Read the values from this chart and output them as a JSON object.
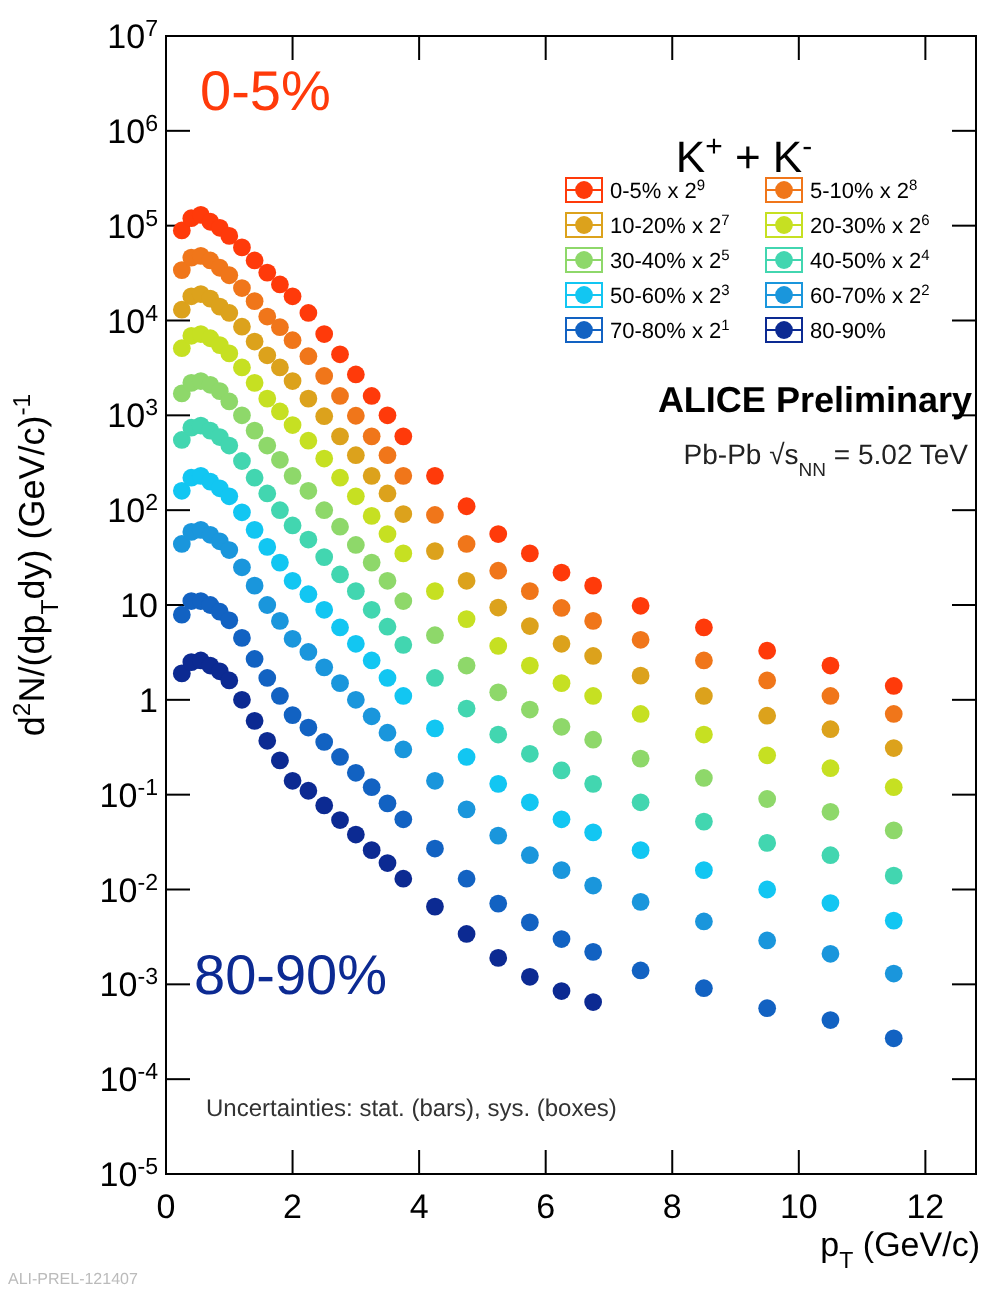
{
  "chart_data": {
    "type": "scatter",
    "xlabel": "p$_{T}$ (GeV/c)",
    "ylabel": "d$^{2}$N/(dp$_{T}$dy) (GeV/c)$^{-1}$",
    "log": "y",
    "xlim": [
      0,
      12.8
    ],
    "xticks": [
      0,
      2,
      4,
      6,
      8,
      10,
      12
    ],
    "ylim": [
      1e-05,
      10000000.0
    ],
    "yticks": [
      {
        "value": 1e-05,
        "label": "10$^{-5}$"
      },
      {
        "value": 0.0001,
        "label": "10$^{-4}$"
      },
      {
        "value": 0.001,
        "label": "10$^{-3}$"
      },
      {
        "value": 0.01,
        "label": "10$^{-2}$"
      },
      {
        "value": 0.1,
        "label": "10$^{-1}$"
      },
      1,
      10,
      {
        "value": 100,
        "label": "10$^{2}$"
      },
      {
        "value": 1000,
        "label": "10$^{3}$"
      },
      {
        "value": 10000,
        "label": "10$^{4}$"
      },
      {
        "value": 100000,
        "label": "10$^{5}$"
      },
      {
        "value": 1000000,
        "label": "10$^{6}$"
      },
      {
        "value": 10000000,
        "label": "10$^{7}$"
      }
    ],
    "marker": "circle",
    "legend": "top right",
    "annotations": [
      "0-5%",
      "80-90%",
      "K$^{+}$ + K$^{-}$",
      "ALICE Preliminary",
      "Pb-Pb √s$_{NN}$ = 5.02 TeV",
      "Uncertainties: stat. (bars), sys. (boxes)",
      "ALI-PREL-121407"
    ],
    "x": [
      0.25,
      0.4,
      0.55,
      0.7,
      0.85,
      1.0,
      1.2,
      1.4,
      1.6,
      1.8,
      2.0,
      2.25,
      2.5,
      2.75,
      3.0,
      3.25,
      3.5,
      3.75,
      4.25,
      4.75,
      5.25,
      5.75,
      6.25,
      6.75,
      7.5,
      8.5,
      9.5,
      10.5,
      11.5
    ],
    "series": [
      {
        "name": "0-5% x 2$^{9}$",
        "color": "#ff3a0a",
        "values": [
          89000.0,
          120000.0,
          130000.0,
          110000.0,
          95000.0,
          78000.0,
          59000.0,
          43000.0,
          32000.0,
          24000.0,
          18000.0,
          12000.0,
          7200.0,
          4400.0,
          2700.0,
          1600.0,
          1000.0,
          600,
          230,
          110,
          56,
          35,
          22,
          16,
          9.8,
          5.8,
          3.3,
          2.3,
          1.4
        ]
      },
      {
        "name": "5-10% x 2$^{8}$",
        "color": "#f0761a",
        "values": [
          34000.0,
          46000.0,
          48000.0,
          43000.0,
          36000.0,
          30000.0,
          22000.0,
          16000.0,
          11000.0,
          8500.0,
          6200.0,
          4200.0,
          2600.0,
          1600.0,
          990,
          600,
          380,
          230,
          89,
          44,
          23,
          14,
          9.3,
          6.8,
          4.3,
          2.6,
          1.6,
          1.1,
          0.71
        ]
      },
      {
        "name": "10-20% x 2$^{7}$",
        "color": "#dca21c",
        "values": [
          13000.0,
          18000.0,
          19000.0,
          17000.0,
          14000.0,
          12000.0,
          8600.0,
          6000.0,
          4300.0,
          3200.0,
          2300.0,
          1500.0,
          980,
          600,
          380,
          230,
          150,
          91,
          37,
          18,
          9.4,
          6.0,
          3.9,
          2.9,
          1.8,
          1.1,
          0.68,
          0.49,
          0.31
        ]
      },
      {
        "name": "20-30% x 2$^{6}$",
        "color": "#c6e022",
        "values": [
          5100.0,
          6900.0,
          7200.0,
          6500.0,
          5500.0,
          4500.0,
          3200.0,
          2200.0,
          1500.0,
          1100.0,
          790,
          540,
          350,
          220,
          140,
          87,
          56,
          35,
          14,
          7.1,
          3.7,
          2.3,
          1.5,
          1.1,
          0.71,
          0.43,
          0.26,
          0.19,
          0.12
        ]
      },
      {
        "name": "30-40% x 2$^{5}$",
        "color": "#8ed86a",
        "values": [
          1700.0,
          2200.0,
          2300.0,
          2100.0,
          1800.0,
          1400.0,
          1000.0,
          690,
          480,
          340,
          230,
          160,
          100,
          67,
          43,
          28,
          18,
          11,
          4.8,
          2.3,
          1.2,
          0.79,
          0.52,
          0.38,
          0.24,
          0.15,
          0.09,
          0.066,
          0.042
        ]
      },
      {
        "name": "40-50% x 2$^{4}$",
        "color": "#42d6b0",
        "values": [
          550,
          740,
          780,
          690,
          590,
          480,
          330,
          220,
          150,
          100,
          69,
          49,
          32,
          21,
          14,
          8.9,
          5.9,
          3.8,
          1.7,
          0.81,
          0.43,
          0.27,
          0.18,
          0.13,
          0.083,
          0.052,
          0.031,
          0.023,
          0.014
        ]
      },
      {
        "name": "50-60% x 2$^{3}$",
        "color": "#12c6f2",
        "values": [
          160,
          220,
          230,
          200,
          170,
          140,
          95,
          62,
          41,
          28,
          18,
          13,
          8.9,
          5.8,
          3.9,
          2.6,
          1.7,
          1.1,
          0.5,
          0.25,
          0.13,
          0.083,
          0.055,
          0.04,
          0.026,
          0.016,
          0.01,
          0.0072,
          0.0047
        ]
      },
      {
        "name": "60-70% x 2$^{2}$",
        "color": "#1a96dc",
        "values": [
          44,
          59,
          62,
          55,
          47,
          38,
          25,
          16,
          10,
          6.8,
          4.4,
          3.2,
          2.2,
          1.5,
          1.0,
          0.67,
          0.45,
          0.3,
          0.14,
          0.07,
          0.037,
          0.023,
          0.016,
          0.011,
          0.0074,
          0.0046,
          0.0029,
          0.0021,
          0.0013
        ]
      },
      {
        "name": "70-80% x 2$^{1}$",
        "color": "#1262c2",
        "values": [
          7.9,
          11,
          11,
          10,
          8.5,
          6.9,
          4.5,
          2.7,
          1.7,
          1.1,
          0.69,
          0.51,
          0.36,
          0.25,
          0.17,
          0.12,
          0.081,
          0.055,
          0.027,
          0.013,
          0.0071,
          0.0045,
          0.003,
          0.0022,
          0.0014,
          0.00091,
          0.00056,
          0.00042,
          0.00027
        ]
      },
      {
        "name": "80-90%",
        "color": "#0c2a92",
        "values": [
          1.9,
          2.5,
          2.6,
          2.3,
          2.0,
          1.6,
          1.0,
          0.6,
          0.37,
          0.23,
          0.14,
          0.11,
          0.077,
          0.054,
          0.038,
          0.026,
          0.019,
          0.013,
          0.0066,
          0.0034,
          0.0019,
          0.0012,
          0.00085,
          0.00065,
          null,
          null,
          null,
          null,
          null
        ]
      }
    ]
  }
}
